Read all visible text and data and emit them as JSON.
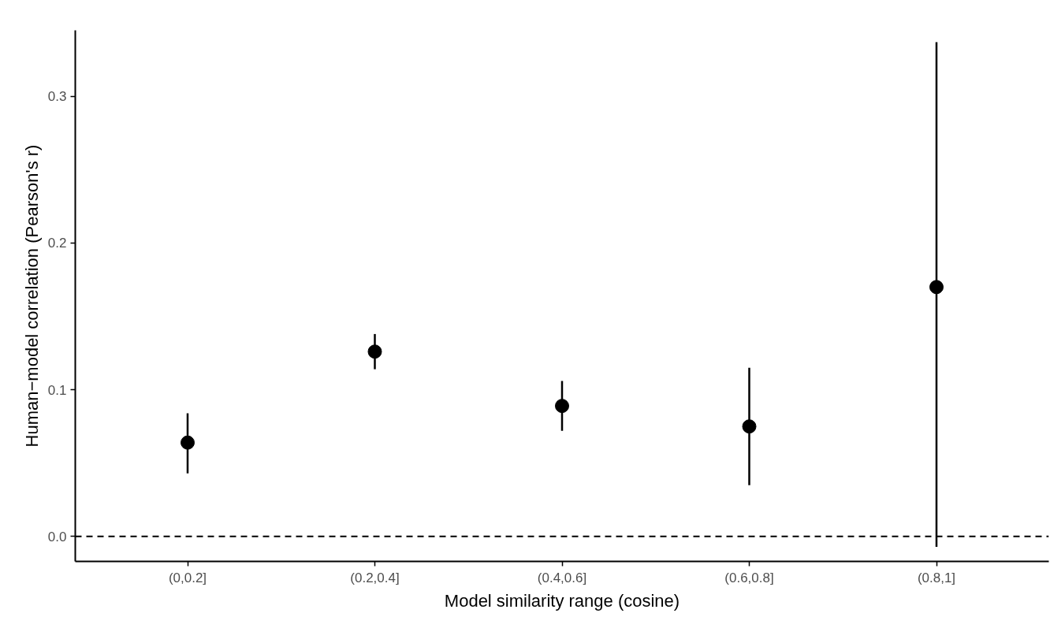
{
  "chart_data": {
    "type": "scatter",
    "xlabel": "Model similarity range (cosine)",
    "ylabel": "Human−model correlation (Pearson's r)",
    "categories": [
      "(0,0.2]",
      "(0.2,0.4]",
      "(0.4,0.6]",
      "(0.6,0.8]",
      "(0.8,1]"
    ],
    "values": [
      0.064,
      0.126,
      0.089,
      0.075,
      0.17
    ],
    "errors": [
      [
        0.043,
        0.084
      ],
      [
        0.114,
        0.138
      ],
      [
        0.072,
        0.106
      ],
      [
        0.035,
        0.115
      ],
      [
        -0.007,
        0.337
      ]
    ],
    "color": "#000000",
    "marker": "circle",
    "ylim": [
      -0.017,
      0.345
    ],
    "yticks": [
      {
        "value": 0,
        "label": "0.0"
      },
      {
        "value": 0.1,
        "label": "0.1"
      },
      {
        "value": 0.2,
        "label": "0.2"
      },
      {
        "value": 0.3,
        "label": "0.3"
      }
    ],
    "ref_lines": [
      {
        "axis": "y",
        "value": 0,
        "line_style": "dashed",
        "color": "#000000"
      }
    ],
    "grid": false
  }
}
